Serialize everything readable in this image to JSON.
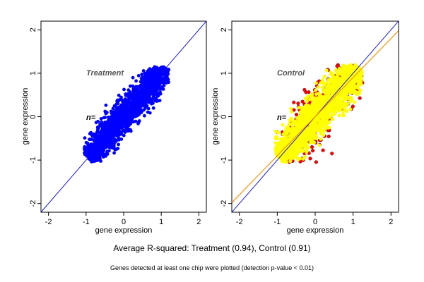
{
  "caption": "Average R-squared: Treatment (0.94), Control (0.91)",
  "footnote": "Genes detected at least one chip were plotted (detection p-value < 0.01)",
  "colors": {
    "treatment": "#0000ff",
    "control_main": "#ffff00",
    "control_outlier": "#ff0000",
    "diagonal": "#0000ff",
    "fit_line": "#ff8c00"
  },
  "chart_data": [
    {
      "type": "scatter",
      "panel_label": "Treatment",
      "n_label": "n=",
      "xlabel": "gene expression",
      "ylabel": "gene expression",
      "xlim": [
        -2.2,
        2.2
      ],
      "ylim": [
        -2.2,
        2.2
      ],
      "xticks": [
        -2,
        -1,
        0,
        1,
        2
      ],
      "yticks": [
        -2,
        -1,
        0,
        1,
        2
      ],
      "reference_line": {
        "slope": 1,
        "intercept": 0
      },
      "point_cloud": {
        "x_range": [
          -1.05,
          1.2
        ],
        "y_range": [
          -1.05,
          1.15
        ],
        "color": "#0000ff"
      }
    },
    {
      "type": "scatter",
      "panel_label": "Control",
      "n_label": "n=",
      "xlabel": "gene expression",
      "ylabel": "gene expression",
      "xlim": [
        -2.2,
        2.2
      ],
      "ylim": [
        -2.2,
        2.2
      ],
      "xticks": [
        -2,
        -1,
        0,
        1,
        2
      ],
      "yticks": [
        -2,
        -1,
        0,
        1,
        2
      ],
      "reference_line": {
        "slope": 1,
        "intercept": 0
      },
      "fit_line": {
        "slope": 0.9,
        "intercept": 0.0
      },
      "point_cloud": {
        "x_range": [
          -1.05,
          1.25
        ],
        "y_range": [
          -1.05,
          1.2
        ],
        "color": "#ffff00",
        "outlier_color": "#ff0000"
      }
    }
  ]
}
